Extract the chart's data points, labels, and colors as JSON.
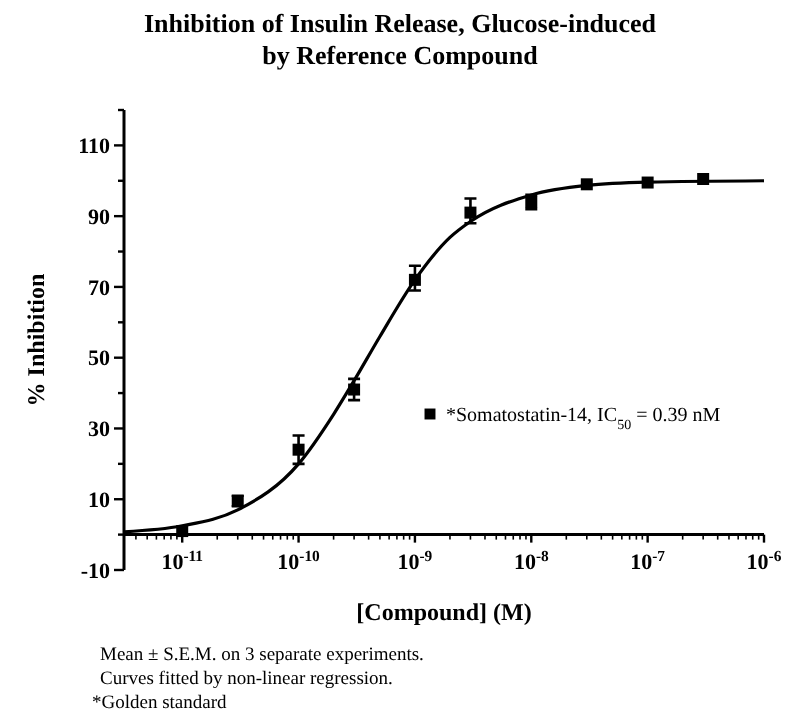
{
  "chart_data": {
    "type": "scatter",
    "title": "Inhibition of Insulin Release, Glucose-induced\nby Reference Compound",
    "xlabel": "[Compound] (M)",
    "ylabel": "% Inhibition",
    "annotations": [
      "Mean ± S.E.M. on 3 separate experiments.",
      "Curves fitted by non-linear regression.",
      "*Golden standard"
    ],
    "log": "x",
    "legend": "right",
    "grid": false,
    "xlim": [
      3.16e-12,
      1e-06
    ],
    "xticks": [
      {
        "value": 1e-11,
        "label": "10$^{-11}$"
      },
      {
        "value": 1e-10,
        "label": "10$^{-10}$"
      },
      {
        "value": 1e-09,
        "label": "10$^{-9}$"
      },
      {
        "value": 1e-08,
        "label": "10$^{-8}$"
      },
      {
        "value": 1e-07,
        "label": "10$^{-7}$"
      },
      {
        "value": 1e-06,
        "label": "10$^{-6}$"
      }
    ],
    "ylim": [
      -10,
      120
    ],
    "yticks": [
      -10,
      {
        "value": 0,
        "label": null
      },
      10,
      {
        "value": 20,
        "label": null
      },
      30,
      {
        "value": 40,
        "label": null
      },
      50,
      {
        "value": 60,
        "label": null
      },
      70,
      {
        "value": 80,
        "label": null
      },
      90,
      {
        "value": 100,
        "label": null
      },
      110,
      {
        "value": 120,
        "label": null
      }
    ],
    "series": [
      {
        "name": "*Somatostatin-14, IC$_{50}$ = 0.39 nM",
        "color": "#000000",
        "marker": "square",
        "x": [
          1e-11,
          3e-11,
          1e-10,
          3e-10,
          1e-09,
          3e-09,
          1e-08,
          3e-08,
          1e-07,
          3e-07
        ],
        "values": [
          1,
          9.5,
          24,
          41,
          72,
          91,
          94,
          99,
          99.5,
          100.5
        ],
        "errors": [
          null,
          [
            8,
            11
          ],
          [
            20,
            28
          ],
          [
            38,
            44
          ],
          [
            69,
            76
          ],
          [
            88,
            95
          ],
          [
            92,
            96
          ],
          null,
          null,
          null
        ]
      },
      {
        "type": "line",
        "marker": "none",
        "color": "#000000",
        "x": [
          3.16e-12,
          1e-11,
          3e-11,
          1e-10,
          2e-10,
          3e-10,
          5e-10,
          1e-09,
          2e-09,
          3e-09,
          1e-08,
          3e-08,
          1e-07,
          1e-06
        ],
        "values": [
          0.8,
          2.5,
          7,
          20,
          34,
          43.5,
          56,
          72,
          84,
          88.5,
          96,
          98.7,
          99.6,
          100
        ]
      }
    ]
  }
}
